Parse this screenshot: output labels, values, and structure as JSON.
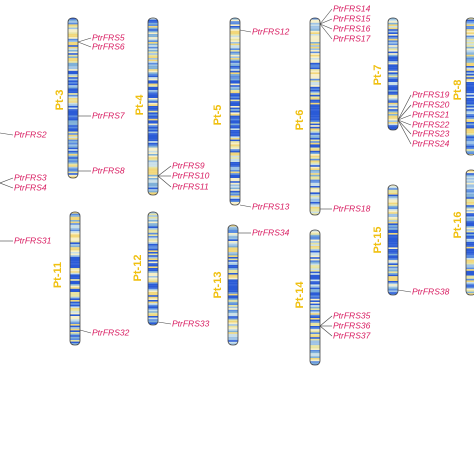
{
  "chromosomes": [
    {
      "label": "Pt-3"
    },
    {
      "label": "Pt-4"
    },
    {
      "label": "Pt-5"
    },
    {
      "label": "Pt-6"
    },
    {
      "label": "Pt-7"
    },
    {
      "label": "Pt-8"
    },
    {
      "label": "Pt-11"
    },
    {
      "label": "Pt-12"
    },
    {
      "label": "Pt-13"
    },
    {
      "label": "Pt-14"
    },
    {
      "label": "Pt-15"
    },
    {
      "label": "Pt-16"
    }
  ],
  "genes": [
    {
      "label": "PtrFRS2"
    },
    {
      "label": "PtrFRS3"
    },
    {
      "label": "PtrFRS4"
    },
    {
      "label": "PtrFRS5"
    },
    {
      "label": "PtrFRS6"
    },
    {
      "label": "PtrFRS7"
    },
    {
      "label": "PtrFRS8"
    },
    {
      "label": "PtrFRS9"
    },
    {
      "label": "PtrFRS10"
    },
    {
      "label": "PtrFRS11"
    },
    {
      "label": "PtrFRS12"
    },
    {
      "label": "PtrFRS13"
    },
    {
      "label": "PtrFRS14"
    },
    {
      "label": "PtrFRS15"
    },
    {
      "label": "PtrFRS16"
    },
    {
      "label": "PtrFRS17"
    },
    {
      "label": "PtrFRS18"
    },
    {
      "label": "PtrFRS19"
    },
    {
      "label": "PtrFRS20"
    },
    {
      "label": "PtrFRS21"
    },
    {
      "label": "PtrFRS22"
    },
    {
      "label": "PtrFRS23"
    },
    {
      "label": "PtrFRS24"
    },
    {
      "label": "PtrFRS31"
    },
    {
      "label": "PtrFRS32"
    },
    {
      "label": "PtrFRS33"
    },
    {
      "label": "PtrFRS34"
    },
    {
      "label": "PtrFRS35"
    },
    {
      "label": "PtrFRS36"
    },
    {
      "label": "PtrFRS37"
    },
    {
      "label": "PtrFRS38"
    }
  ]
}
